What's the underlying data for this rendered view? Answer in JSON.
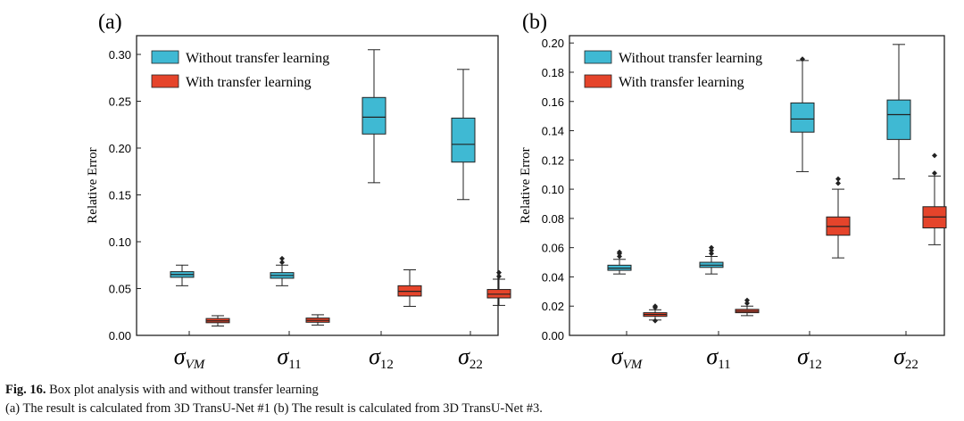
{
  "colors": {
    "without": "#3fb9d3",
    "with": "#e5442b",
    "axis": "#222222"
  },
  "caption": {
    "label": "Fig. 16.",
    "line1": "Box plot analysis with and without transfer learning",
    "line2": "(a) The result is calculated from 3D TransU-Net #1 (b) The result is calculated from 3D TransU-Net #3."
  },
  "chart_data": [
    {
      "type": "box",
      "panel_label": "(a)",
      "ylabel": "Relative Error",
      "ylim": [
        0,
        0.32
      ],
      "yticks": [
        0.0,
        0.05,
        0.1,
        0.15,
        0.2,
        0.25,
        0.3
      ],
      "ytick_labels": [
        "0.00",
        "0.05",
        "0.10",
        "0.15",
        "0.20",
        "0.25",
        "0.30"
      ],
      "categories": [
        {
          "base": "σ",
          "sub": "VM",
          "sub_italic": true
        },
        {
          "base": "σ",
          "sub": "11",
          "sub_italic": false
        },
        {
          "base": "σ",
          "sub": "12",
          "sub_italic": false
        },
        {
          "base": "σ",
          "sub": "22",
          "sub_italic": false
        }
      ],
      "legend": {
        "position": "top-left",
        "entries": [
          "Without transfer learning",
          "With transfer learning"
        ]
      },
      "series": [
        {
          "name": "Without transfer learning",
          "color_key": "without",
          "boxes": [
            {
              "whisker_low": 0.053,
              "q1": 0.062,
              "median": 0.065,
              "q3": 0.068,
              "whisker_high": 0.075,
              "outliers": []
            },
            {
              "whisker_low": 0.053,
              "q1": 0.061,
              "median": 0.064,
              "q3": 0.067,
              "whisker_high": 0.075,
              "outliers": [
                0.078,
                0.082
              ]
            },
            {
              "whisker_low": 0.163,
              "q1": 0.215,
              "median": 0.233,
              "q3": 0.254,
              "whisker_high": 0.305,
              "outliers": []
            },
            {
              "whisker_low": 0.145,
              "q1": 0.185,
              "median": 0.204,
              "q3": 0.232,
              "whisker_high": 0.284,
              "outliers": []
            }
          ]
        },
        {
          "name": "With transfer learning",
          "color_key": "with",
          "boxes": [
            {
              "whisker_low": 0.01,
              "q1": 0.0135,
              "median": 0.0155,
              "q3": 0.018,
              "whisker_high": 0.021,
              "outliers": []
            },
            {
              "whisker_low": 0.011,
              "q1": 0.014,
              "median": 0.016,
              "q3": 0.0185,
              "whisker_high": 0.022,
              "outliers": []
            },
            {
              "whisker_low": 0.031,
              "q1": 0.042,
              "median": 0.047,
              "q3": 0.053,
              "whisker_high": 0.07,
              "outliers": []
            },
            {
              "whisker_low": 0.032,
              "q1": 0.04,
              "median": 0.044,
              "q3": 0.049,
              "whisker_high": 0.06,
              "outliers": [
                0.063,
                0.067
              ]
            }
          ]
        }
      ]
    },
    {
      "type": "box",
      "panel_label": "(b)",
      "ylabel": "Relative Error",
      "ylim": [
        0,
        0.205
      ],
      "yticks": [
        0.0,
        0.02,
        0.04,
        0.06,
        0.08,
        0.1,
        0.12,
        0.14,
        0.16,
        0.18,
        0.2
      ],
      "ytick_labels": [
        "0.00",
        "0.02",
        "0.04",
        "0.06",
        "0.08",
        "0.10",
        "0.12",
        "0.14",
        "0.16",
        "0.18",
        "0.20"
      ],
      "categories": [
        {
          "base": "σ",
          "sub": "VM",
          "sub_italic": true
        },
        {
          "base": "σ",
          "sub": "11",
          "sub_italic": false
        },
        {
          "base": "σ",
          "sub": "12",
          "sub_italic": false
        },
        {
          "base": "σ",
          "sub": "22",
          "sub_italic": false
        }
      ],
      "legend": {
        "position": "top-left",
        "entries": [
          "Without transfer learning",
          "With transfer learning"
        ]
      },
      "series": [
        {
          "name": "Without transfer learning",
          "color_key": "without",
          "boxes": [
            {
              "whisker_low": 0.042,
              "q1": 0.0445,
              "median": 0.046,
              "q3": 0.048,
              "whisker_high": 0.052,
              "outliers": [
                0.054,
                0.056,
                0.057
              ]
            },
            {
              "whisker_low": 0.042,
              "q1": 0.0465,
              "median": 0.048,
              "q3": 0.05,
              "whisker_high": 0.054,
              "outliers": [
                0.056,
                0.058,
                0.06
              ]
            },
            {
              "whisker_low": 0.112,
              "q1": 0.139,
              "median": 0.148,
              "q3": 0.159,
              "whisker_high": 0.188,
              "outliers": [
                0.189
              ]
            },
            {
              "whisker_low": 0.107,
              "q1": 0.134,
              "median": 0.151,
              "q3": 0.161,
              "whisker_high": 0.199,
              "outliers": []
            }
          ]
        },
        {
          "name": "With transfer learning",
          "color_key": "with",
          "boxes": [
            {
              "whisker_low": 0.0105,
              "q1": 0.013,
              "median": 0.0143,
              "q3": 0.0155,
              "whisker_high": 0.0175,
              "outliers": [
                0.01,
                0.019,
                0.02
              ]
            },
            {
              "whisker_low": 0.0135,
              "q1": 0.0155,
              "median": 0.0165,
              "q3": 0.0178,
              "whisker_high": 0.02,
              "outliers": [
                0.022,
                0.024
              ]
            },
            {
              "whisker_low": 0.053,
              "q1": 0.0685,
              "median": 0.0745,
              "q3": 0.081,
              "whisker_high": 0.1,
              "outliers": [
                0.104,
                0.107
              ]
            },
            {
              "whisker_low": 0.062,
              "q1": 0.0735,
              "median": 0.081,
              "q3": 0.088,
              "whisker_high": 0.109,
              "outliers": [
                0.111,
                0.123
              ]
            }
          ]
        }
      ]
    }
  ]
}
